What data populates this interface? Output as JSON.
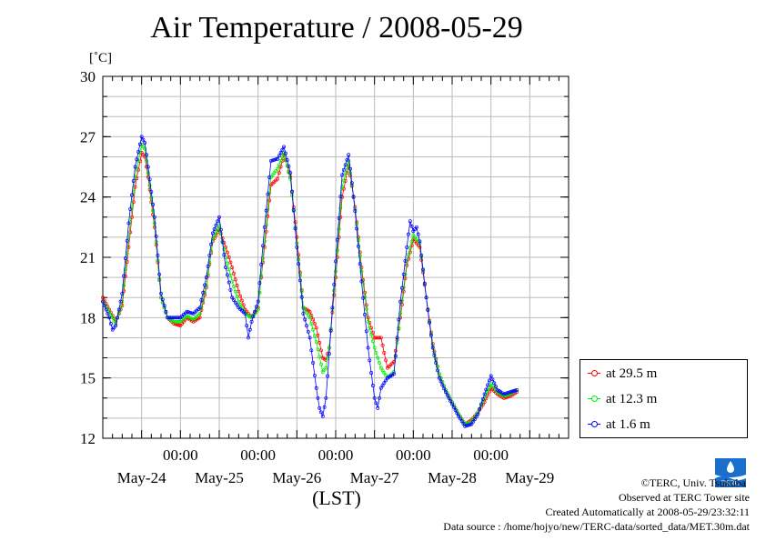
{
  "chart_data": {
    "type": "line",
    "title": "Air Temperature / 2008-05-29",
    "ylabel": "[˚C]",
    "xlabel": "(LST)",
    "ylim": [
      12,
      30
    ],
    "yticks": [
      12,
      15,
      18,
      21,
      24,
      27,
      30
    ],
    "xlim": [
      0,
      144
    ],
    "xticks": [
      {
        "x": 24,
        "time": "00:00",
        "date": "May-25"
      },
      {
        "x": 48,
        "time": "00:00",
        "date": "May-26"
      },
      {
        "x": 72,
        "time": "00:00",
        "date": "May-27"
      },
      {
        "x": 96,
        "time": "00:00",
        "date": "May-28"
      },
      {
        "x": 120,
        "time": "00:00",
        "date": "May-29"
      }
    ],
    "date_labels": [
      {
        "x": 12,
        "label": "May-24"
      },
      {
        "x": 36,
        "label": "May-25"
      },
      {
        "x": 60,
        "label": "May-26"
      },
      {
        "x": 84,
        "label": "May-27"
      },
      {
        "x": 108,
        "label": "May-28"
      },
      {
        "x": 132,
        "label": "May-29"
      }
    ],
    "grid": true,
    "legend_position": "right",
    "series": [
      {
        "name": "at 29.5 m",
        "color": "#ff0000",
        "points": [
          [
            0,
            19.0
          ],
          [
            2,
            18.4
          ],
          [
            4,
            17.8
          ],
          [
            6,
            18.6
          ],
          [
            8,
            21.5
          ],
          [
            10,
            24.5
          ],
          [
            12,
            26.2
          ],
          [
            13,
            26.0
          ],
          [
            14,
            25.0
          ],
          [
            16,
            22.5
          ],
          [
            18,
            19.0
          ],
          [
            20,
            18.0
          ],
          [
            22,
            17.7
          ],
          [
            24,
            17.6
          ],
          [
            26,
            18.0
          ],
          [
            28,
            17.8
          ],
          [
            30,
            18.0
          ],
          [
            32,
            19.5
          ],
          [
            34,
            21.8
          ],
          [
            36,
            22.4
          ],
          [
            38,
            21.5
          ],
          [
            40,
            20.5
          ],
          [
            42,
            19.3
          ],
          [
            44,
            18.4
          ],
          [
            46,
            18.0
          ],
          [
            48,
            18.5
          ],
          [
            50,
            21.5
          ],
          [
            52,
            24.6
          ],
          [
            54,
            24.9
          ],
          [
            56,
            26.1
          ],
          [
            58,
            25.0
          ],
          [
            60,
            22.0
          ],
          [
            62,
            18.5
          ],
          [
            64,
            18.3
          ],
          [
            66,
            17.5
          ],
          [
            68,
            16.0
          ],
          [
            69,
            15.9
          ],
          [
            70,
            16.5
          ],
          [
            72,
            20.0
          ],
          [
            74,
            24.0
          ],
          [
            76,
            25.6
          ],
          [
            78,
            23.5
          ],
          [
            80,
            20.5
          ],
          [
            82,
            18.0
          ],
          [
            84,
            17.0
          ],
          [
            86,
            17.0
          ],
          [
            88,
            15.5
          ],
          [
            90,
            15.8
          ],
          [
            92,
            18.0
          ],
          [
            94,
            20.6
          ],
          [
            96,
            21.9
          ],
          [
            98,
            21.5
          ],
          [
            100,
            19.0
          ],
          [
            102,
            16.7
          ],
          [
            104,
            15.2
          ],
          [
            106,
            14.4
          ],
          [
            108,
            13.8
          ],
          [
            110,
            13.2
          ],
          [
            112,
            12.7
          ],
          [
            114,
            12.9
          ],
          [
            116,
            13.3
          ],
          [
            118,
            13.8
          ],
          [
            120,
            14.5
          ],
          [
            122,
            14.2
          ],
          [
            124,
            14.0
          ],
          [
            126,
            14.1
          ],
          [
            128,
            14.3
          ]
        ]
      },
      {
        "name": "at 12.3 m",
        "color": "#00ee00",
        "points": [
          [
            0,
            18.8
          ],
          [
            2,
            18.3
          ],
          [
            4,
            17.7
          ],
          [
            6,
            18.8
          ],
          [
            8,
            22.0
          ],
          [
            10,
            25.0
          ],
          [
            12,
            26.6
          ],
          [
            13,
            26.4
          ],
          [
            14,
            25.2
          ],
          [
            16,
            22.7
          ],
          [
            18,
            19.0
          ],
          [
            20,
            18.0
          ],
          [
            22,
            17.8
          ],
          [
            24,
            17.8
          ],
          [
            26,
            18.1
          ],
          [
            28,
            17.9
          ],
          [
            30,
            18.2
          ],
          [
            32,
            19.6
          ],
          [
            34,
            21.9
          ],
          [
            36,
            22.6
          ],
          [
            38,
            21.0
          ],
          [
            40,
            19.8
          ],
          [
            42,
            18.8
          ],
          [
            44,
            18.2
          ],
          [
            46,
            18.0
          ],
          [
            48,
            18.4
          ],
          [
            50,
            21.8
          ],
          [
            52,
            25.0
          ],
          [
            54,
            25.4
          ],
          [
            56,
            26.2
          ],
          [
            58,
            24.9
          ],
          [
            60,
            21.7
          ],
          [
            62,
            18.5
          ],
          [
            64,
            18.0
          ],
          [
            66,
            16.8
          ],
          [
            68,
            15.3
          ],
          [
            69,
            15.5
          ],
          [
            70,
            16.5
          ],
          [
            72,
            20.3
          ],
          [
            74,
            24.5
          ],
          [
            76,
            25.8
          ],
          [
            78,
            23.4
          ],
          [
            80,
            20.3
          ],
          [
            82,
            17.8
          ],
          [
            84,
            16.5
          ],
          [
            86,
            15.5
          ],
          [
            88,
            15.0
          ],
          [
            90,
            15.3
          ],
          [
            92,
            18.2
          ],
          [
            94,
            20.8
          ],
          [
            96,
            22.1
          ],
          [
            98,
            21.7
          ],
          [
            100,
            19.0
          ],
          [
            102,
            16.6
          ],
          [
            104,
            15.2
          ],
          [
            106,
            14.4
          ],
          [
            108,
            13.8
          ],
          [
            110,
            13.2
          ],
          [
            112,
            12.7
          ],
          [
            114,
            12.8
          ],
          [
            116,
            13.3
          ],
          [
            118,
            14.0
          ],
          [
            120,
            14.7
          ],
          [
            122,
            14.3
          ],
          [
            124,
            14.1
          ],
          [
            126,
            14.2
          ],
          [
            128,
            14.4
          ]
        ]
      },
      {
        "name": "at 1.6 m",
        "color": "#0000ff",
        "points": [
          [
            0,
            18.8
          ],
          [
            2,
            18.0
          ],
          [
            3,
            17.4
          ],
          [
            4,
            17.6
          ],
          [
            6,
            19.2
          ],
          [
            8,
            22.7
          ],
          [
            10,
            25.5
          ],
          [
            12,
            27.0
          ],
          [
            13,
            26.7
          ],
          [
            14,
            25.5
          ],
          [
            16,
            23.0
          ],
          [
            18,
            19.2
          ],
          [
            20,
            18.0
          ],
          [
            22,
            18.0
          ],
          [
            24,
            18.0
          ],
          [
            26,
            18.3
          ],
          [
            28,
            18.2
          ],
          [
            30,
            18.5
          ],
          [
            32,
            20.0
          ],
          [
            34,
            22.2
          ],
          [
            36,
            23.0
          ],
          [
            38,
            20.5
          ],
          [
            40,
            19.0
          ],
          [
            42,
            18.5
          ],
          [
            44,
            18.2
          ],
          [
            45,
            17.0
          ],
          [
            46,
            17.8
          ],
          [
            48,
            18.8
          ],
          [
            50,
            22.5
          ],
          [
            52,
            25.8
          ],
          [
            54,
            25.9
          ],
          [
            56,
            26.5
          ],
          [
            58,
            25.2
          ],
          [
            60,
            21.5
          ],
          [
            62,
            18.2
          ],
          [
            64,
            17.0
          ],
          [
            66,
            14.5
          ],
          [
            67,
            13.5
          ],
          [
            68,
            13.1
          ],
          [
            69,
            14.0
          ],
          [
            70,
            16.2
          ],
          [
            72,
            20.8
          ],
          [
            74,
            25.1
          ],
          [
            76,
            26.1
          ],
          [
            78,
            23.3
          ],
          [
            80,
            19.8
          ],
          [
            82,
            16.5
          ],
          [
            84,
            14.0
          ],
          [
            85,
            13.5
          ],
          [
            86,
            14.5
          ],
          [
            88,
            15.0
          ],
          [
            90,
            15.2
          ],
          [
            92,
            18.8
          ],
          [
            94,
            21.5
          ],
          [
            95,
            22.8
          ],
          [
            96,
            22.3
          ],
          [
            97,
            22.5
          ],
          [
            98,
            21.8
          ],
          [
            100,
            19.0
          ],
          [
            102,
            16.5
          ],
          [
            104,
            15.0
          ],
          [
            106,
            14.3
          ],
          [
            108,
            13.7
          ],
          [
            110,
            13.1
          ],
          [
            112,
            12.6
          ],
          [
            114,
            12.7
          ],
          [
            116,
            13.2
          ],
          [
            118,
            14.2
          ],
          [
            120,
            15.1
          ],
          [
            122,
            14.4
          ],
          [
            124,
            14.2
          ],
          [
            126,
            14.3
          ],
          [
            128,
            14.4
          ]
        ]
      }
    ]
  },
  "footer": {
    "copyright": "©TERC, Univ. Tsukuba",
    "observed": "Observed at TERC Tower site",
    "created": "Created Automatically at 2008-05-29/23:32:11",
    "source": "Data source : /home/hojyo/new/TERC-data/sorted_data/MET.30m.dat"
  },
  "logo": {
    "text": "TERC",
    "color": "#1a6fcc"
  }
}
